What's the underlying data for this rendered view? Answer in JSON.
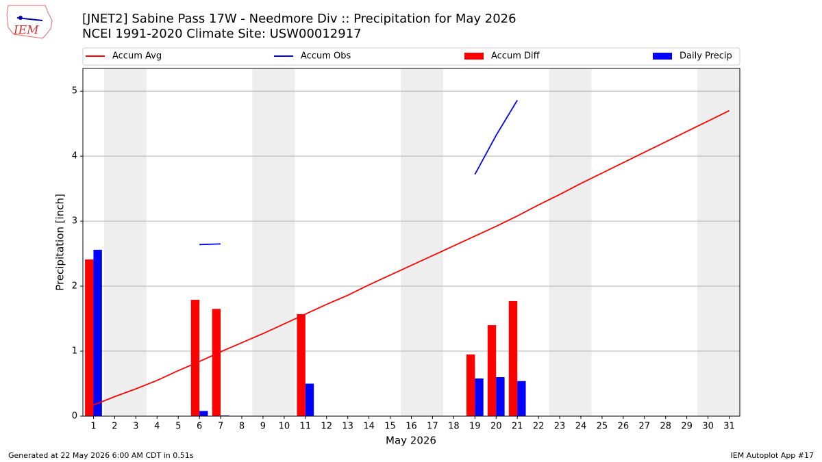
{
  "chart_data": {
    "type": "bar_line",
    "logo_text": "IEM",
    "title": "[JNET2] Sabine Pass 17W - Needmore Div :: Precipitation for May 2026",
    "subtitle": "NCEI 1991-2020 Climate Site: USW00012917",
    "x_label": "May 2026",
    "y_label": "Precipitation [inch]",
    "x": [
      1,
      2,
      3,
      4,
      5,
      6,
      7,
      8,
      9,
      10,
      11,
      12,
      13,
      14,
      15,
      16,
      17,
      18,
      19,
      20,
      21,
      22,
      23,
      24,
      25,
      26,
      27,
      28,
      29,
      30,
      31
    ],
    "xlim": [
      0.5,
      31.5
    ],
    "xticks": [
      1,
      2,
      3,
      4,
      5,
      6,
      7,
      8,
      9,
      10,
      11,
      12,
      13,
      14,
      15,
      16,
      17,
      18,
      19,
      20,
      21,
      22,
      23,
      24,
      25,
      26,
      27,
      28,
      29,
      30,
      31
    ],
    "ylim": [
      0,
      5.35
    ],
    "yticks": [
      0,
      1,
      2,
      3,
      4,
      5
    ],
    "grid": true,
    "shaded_ranges": [
      [
        1.5,
        3.5
      ],
      [
        8.5,
        10.5
      ],
      [
        15.5,
        17.5
      ],
      [
        22.5,
        24.5
      ],
      [
        29.5,
        31.5
      ]
    ],
    "series": [
      {
        "name": "Accum Avg",
        "kind": "line",
        "color": "#ff0000",
        "values": [
          0.17,
          0.3,
          0.42,
          0.55,
          0.7,
          0.84,
          0.99,
          1.13,
          1.27,
          1.42,
          1.57,
          1.72,
          1.86,
          2.02,
          2.17,
          2.32,
          2.47,
          2.62,
          2.77,
          2.92,
          3.08,
          3.25,
          3.41,
          3.58,
          3.74,
          3.9,
          4.06,
          4.22,
          4.38,
          4.54,
          4.7
        ]
      },
      {
        "name": "Accum Obs",
        "kind": "line",
        "color": "#0000ff",
        "values": [
          null,
          null,
          null,
          null,
          null,
          2.64,
          2.65,
          null,
          null,
          null,
          null,
          null,
          null,
          null,
          null,
          null,
          null,
          null,
          3.72,
          4.32,
          4.86,
          null,
          null,
          null,
          null,
          null,
          null,
          null,
          null,
          null,
          null
        ]
      },
      {
        "name": "Accum Diff",
        "kind": "bar",
        "offset": -0.2,
        "color": "#ff0000",
        "values": [
          2.41,
          null,
          null,
          null,
          null,
          1.79,
          1.65,
          null,
          null,
          null,
          1.57,
          null,
          null,
          null,
          null,
          null,
          null,
          null,
          0.95,
          1.4,
          1.77,
          null,
          null,
          null,
          null,
          null,
          null,
          null,
          null,
          null,
          null
        ]
      },
      {
        "name": "Daily Precip",
        "kind": "bar",
        "offset": 0.2,
        "color": "#0000ff",
        "values": [
          2.56,
          null,
          null,
          null,
          null,
          0.08,
          0.01,
          null,
          null,
          null,
          0.5,
          null,
          null,
          null,
          null,
          null,
          null,
          null,
          0.58,
          0.6,
          0.54,
          null,
          null,
          null,
          null,
          null,
          null,
          null,
          null,
          null,
          null
        ]
      }
    ],
    "footer_left": "Generated at 22 May 2026 6:00 AM CDT in 0.51s",
    "footer_right": "IEM Autoplot App #17"
  }
}
